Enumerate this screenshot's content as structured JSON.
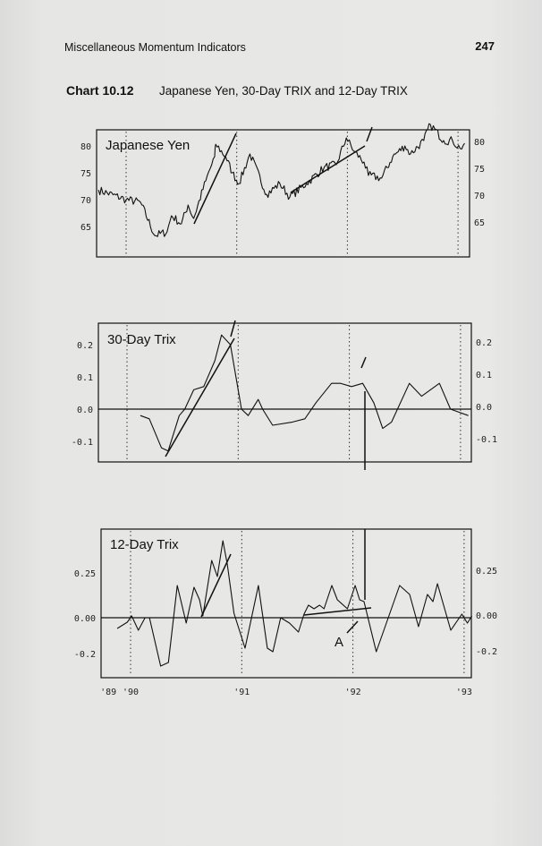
{
  "page": {
    "running_head": "Miscellaneous Momentum Indicators",
    "page_number": "247"
  },
  "caption": {
    "label": "Chart 10.12",
    "text": "Japanese Yen, 30-Day TRIX and 12-Day TRIX"
  },
  "annotations": {
    "a_label": "A"
  },
  "chart_data": [
    {
      "type": "line",
      "title": "Japanese Yen",
      "ylim": [
        60.8,
        83
      ],
      "yticks": [
        "80",
        "75",
        "70",
        "65"
      ],
      "ytick_values": [
        80,
        75,
        70,
        65
      ],
      "grid": "dotted vertical lines at year starts",
      "x": [
        1989.75,
        1990.0,
        1990.13,
        1990.26,
        1990.37,
        1990.41,
        1990.5,
        1990.56,
        1990.61,
        1990.72,
        1990.8,
        1990.81,
        1990.9,
        1990.96,
        1991.02,
        1991.12,
        1991.27,
        1991.39,
        1991.48,
        1991.63,
        1991.79,
        1991.9,
        1991.99,
        1992.06,
        1992.15,
        1992.19,
        1992.31,
        1992.41,
        1992.52,
        1992.57,
        1992.69,
        1992.75,
        1992.87,
        1992.95,
        1993.02,
        1993.06
      ],
      "y": [
        71.8,
        70,
        69.5,
        63.3,
        64,
        67,
        65.5,
        69,
        66.5,
        73.5,
        78,
        80.3,
        78,
        75,
        73,
        78.5,
        71,
        73,
        70.5,
        73,
        76,
        76.5,
        81.5,
        79,
        77,
        74.5,
        74,
        78,
        80,
        78.5,
        81,
        84,
        81,
        81,
        79.5,
        80.5
      ]
    },
    {
      "type": "line",
      "title": "30-Day Trix",
      "ylim": [
        -0.16,
        0.26
      ],
      "yticks": [
        "0.2",
        "0.1",
        "0.0",
        "-0.1"
      ],
      "ytick_values": [
        0.2,
        0.1,
        0.0,
        -0.1
      ],
      "x": [
        1990.12,
        1990.2,
        1990.31,
        1990.37,
        1990.47,
        1990.52,
        1990.6,
        1990.69,
        1990.79,
        1990.85,
        1990.93,
        1991.03,
        1991.09,
        1991.18,
        1991.22,
        1991.31,
        1991.49,
        1991.6,
        1991.7,
        1991.84,
        1991.92,
        1992.02,
        1992.12,
        1992.22,
        1992.3,
        1992.38,
        1992.54,
        1992.65,
        1992.81,
        1992.91,
        1993.07
      ],
      "y": [
        -0.02,
        -0.03,
        -0.12,
        -0.13,
        -0.02,
        0.0,
        0.06,
        0.07,
        0.15,
        0.23,
        0.2,
        0.0,
        -0.02,
        0.03,
        0.0,
        -0.05,
        -0.04,
        -0.03,
        0.02,
        0.08,
        0.08,
        0.07,
        0.08,
        0.02,
        -0.06,
        -0.04,
        0.08,
        0.04,
        0.08,
        0.0,
        -0.02
      ]
    },
    {
      "type": "line",
      "title": "12-Day Trix",
      "ylim": [
        -0.34,
        0.5
      ],
      "yticks": [
        "0.25",
        "0.00",
        "-0.2"
      ],
      "ytick_values": [
        0.25,
        0.0,
        -0.2
      ],
      "xticks": [
        {
          "label": "'89",
          "x": 1989.8
        },
        {
          "label": "'90",
          "x": 1990.0
        },
        {
          "label": "'91",
          "x": 1991.0
        },
        {
          "label": "'92",
          "x": 1992.0
        },
        {
          "label": "'93",
          "x": 1993.0
        }
      ],
      "x": [
        1989.88,
        1989.97,
        1990.01,
        1990.07,
        1990.13,
        1990.17,
        1990.27,
        1990.34,
        1990.42,
        1990.5,
        1990.57,
        1990.62,
        1990.65,
        1990.73,
        1990.78,
        1990.83,
        1990.87,
        1990.93,
        1991.03,
        1991.15,
        1991.23,
        1991.28,
        1991.35,
        1991.43,
        1991.51,
        1991.56,
        1991.6,
        1991.65,
        1991.7,
        1991.74,
        1991.81,
        1991.86,
        1991.95,
        1992.02,
        1992.06,
        1992.1,
        1992.21,
        1992.29,
        1992.42,
        1992.51,
        1992.59,
        1992.67,
        1992.72,
        1992.76,
        1992.88,
        1992.98,
        1993.03,
        1993.07
      ],
      "y": [
        -0.06,
        -0.025,
        0.01,
        -0.07,
        0.0,
        0.0,
        -0.27,
        -0.25,
        0.18,
        -0.03,
        0.17,
        0.1,
        0.01,
        0.32,
        0.23,
        0.43,
        0.3,
        0.025,
        -0.17,
        0.18,
        -0.17,
        -0.19,
        0.0,
        -0.03,
        -0.08,
        0.02,
        0.07,
        0.05,
        0.07,
        0.05,
        0.18,
        0.1,
        0.05,
        0.18,
        0.1,
        0.09,
        -0.19,
        -0.05,
        0.18,
        0.13,
        -0.05,
        0.13,
        0.09,
        0.19,
        -0.07,
        0.02,
        -0.03,
        0.01
      ]
    }
  ]
}
